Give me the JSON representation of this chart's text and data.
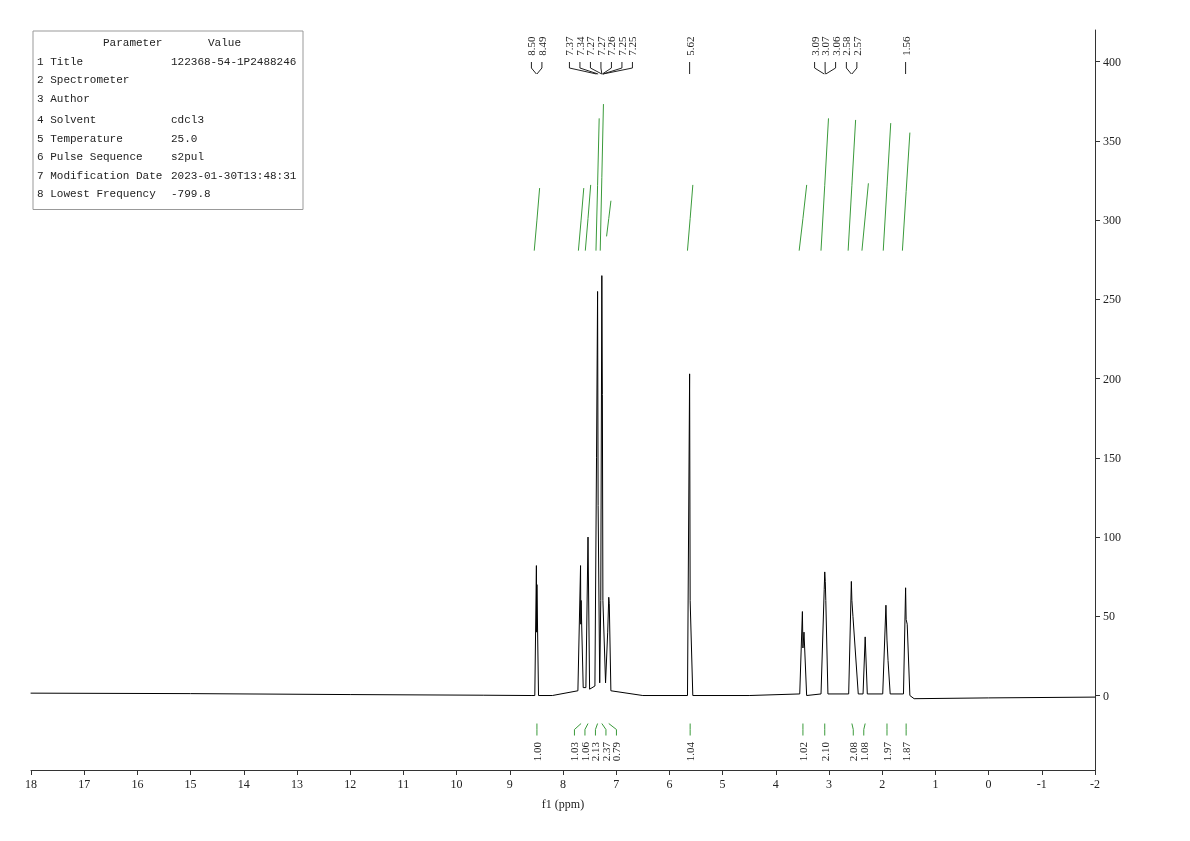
{
  "chart_data": {
    "type": "line",
    "xlabel": "f1 (ppm)",
    "xlim": [
      18,
      -2
    ],
    "xticks": [
      18,
      17,
      16,
      15,
      14,
      13,
      12,
      11,
      10,
      9,
      8,
      7,
      6,
      5,
      4,
      3,
      2,
      1,
      0,
      -1,
      -2
    ],
    "ylim": [
      -47,
      420
    ],
    "yticks": [
      0,
      50,
      100,
      150,
      200,
      250,
      300,
      350,
      400
    ],
    "grid": false,
    "marker": "none",
    "line_style": "solid",
    "series": [
      {
        "color": "#000000",
        "x": [
          18,
          15,
          12,
          9.5,
          8.6,
          8.53,
          8.5,
          8.495,
          8.49,
          8.46,
          8.2,
          7.72,
          7.67,
          7.665,
          7.66,
          7.62,
          7.57,
          7.53,
          7.5,
          7.4,
          7.37,
          7.35,
          7.34,
          7.31,
          7.29,
          7.27,
          7.26,
          7.25,
          7.2,
          7.16,
          7.14,
          7.13,
          7.1,
          6.5,
          5.66,
          5.62,
          5.61,
          5.56,
          4.5,
          3.55,
          3.5,
          3.49,
          3.47,
          3.42,
          3.15,
          3.09,
          3.08,
          3.07,
          3.06,
          3.02,
          2.63,
          2.58,
          2.57,
          2.55,
          2.45,
          2.36,
          2.32,
          2.28,
          1.99,
          1.93,
          1.91,
          1.89,
          1.85,
          1.6,
          1.56,
          1.55,
          1.53,
          1.48,
          1.4,
          0,
          -2
        ],
        "values": [
          1.5,
          1.2,
          0.6,
          0.2,
          0,
          0,
          82,
          40,
          70,
          0,
          0,
          3,
          82,
          45,
          60,
          5,
          5,
          100,
          4,
          6,
          150,
          255,
          120,
          8,
          60,
          265,
          190,
          60,
          8,
          40,
          62,
          58,
          3,
          0,
          0,
          203,
          60,
          0,
          0,
          1,
          53,
          30,
          40,
          0,
          1,
          67,
          78,
          72,
          60,
          1,
          1,
          72,
          60,
          50,
          1,
          1,
          37,
          1,
          1,
          57,
          35,
          22,
          1,
          1,
          68,
          48,
          45,
          0,
          -2,
          -1.5,
          -1
        ]
      },
      {
        "color": "#3a9a3a",
        "x": [
          8.54,
          8.49,
          8.44,
          8.43,
          7.71,
          7.66,
          7.61,
          7.6,
          7.58,
          7.53,
          7.48,
          7.47,
          7.38,
          7.35,
          7.32,
          7.315,
          7.3,
          7.27,
          7.24,
          7.235,
          7.18,
          7.14,
          7.1,
          7.09,
          5.66,
          5.61,
          5.56,
          5.55,
          3.56,
          3.49,
          3.42,
          3.41,
          3.15,
          3.08,
          3.01,
          3.0,
          2.64,
          2.57,
          2.5,
          2.49,
          2.38,
          2.32,
          2.26,
          2.25,
          1.98,
          1.91,
          1.84,
          1.83,
          1.62,
          1.55,
          1.48
        ],
        "values": [
          281,
          300,
          320,
          null,
          281,
          300,
          320,
          null,
          281,
          301,
          322,
          null,
          281,
          322,
          364,
          null,
          281,
          327,
          373,
          null,
          290,
          301,
          312,
          null,
          281,
          301,
          322,
          null,
          281,
          301,
          322,
          null,
          281,
          322,
          364,
          null,
          281,
          322,
          363,
          null,
          281,
          302,
          323,
          null,
          281,
          321,
          361,
          null,
          281,
          318,
          355
        ]
      }
    ],
    "annotations": [
      "Parameter\tValue",
      "1 Title\t122368-54-1P2488246",
      "2 Spectrometer",
      "3 Author",
      "4 Solvent\tcdcl3",
      "5 Temperature\t25.0",
      "6 Pulse Sequence\ts2pul",
      "7 Modification Date\t2023-01-30T13:48:31",
      "8 Lowest Frequency\t-799.8",
      {
        "text": "8.50",
        "x": 8.5
      },
      {
        "text": "8.49",
        "x": 8.49
      },
      {
        "text": "7.37",
        "x": 7.37
      },
      {
        "text": "7.34",
        "x": 7.34
      },
      {
        "text": "7.27",
        "x": 7.27
      },
      {
        "text": "7.27",
        "x": 7.27
      },
      {
        "text": "7.26",
        "x": 7.26
      },
      {
        "text": "7.25",
        "x": 7.25
      },
      {
        "text": "7.25",
        "x": 7.25
      },
      {
        "text": "5.62",
        "x": 5.62
      },
      {
        "text": "3.09",
        "x": 3.09
      },
      {
        "text": "3.07",
        "x": 3.07
      },
      {
        "text": "3.06",
        "x": 3.06
      },
      {
        "text": "2.58",
        "x": 2.58
      },
      {
        "text": "2.57",
        "x": 2.57
      },
      {
        "text": "1.56",
        "x": 1.56
      },
      {
        "text": "1.00",
        "x": 8.49
      },
      {
        "text": "1.03",
        "x": 7.66
      },
      {
        "text": "1.06",
        "x": 7.53
      },
      {
        "text": "2.13",
        "x": 7.35
      },
      {
        "text": "2.37",
        "x": 7.27
      },
      {
        "text": "0.79",
        "x": 7.14
      },
      {
        "text": "1.04",
        "x": 5.61
      },
      {
        "text": "1.02",
        "x": 3.49
      },
      {
        "text": "2.10",
        "x": 3.08
      },
      {
        "text": "2.08",
        "x": 2.57
      },
      {
        "text": "1.08",
        "x": 2.32
      },
      {
        "text": "1.97",
        "x": 1.91
      },
      {
        "text": "1.87",
        "x": 1.55
      }
    ]
  }
}
